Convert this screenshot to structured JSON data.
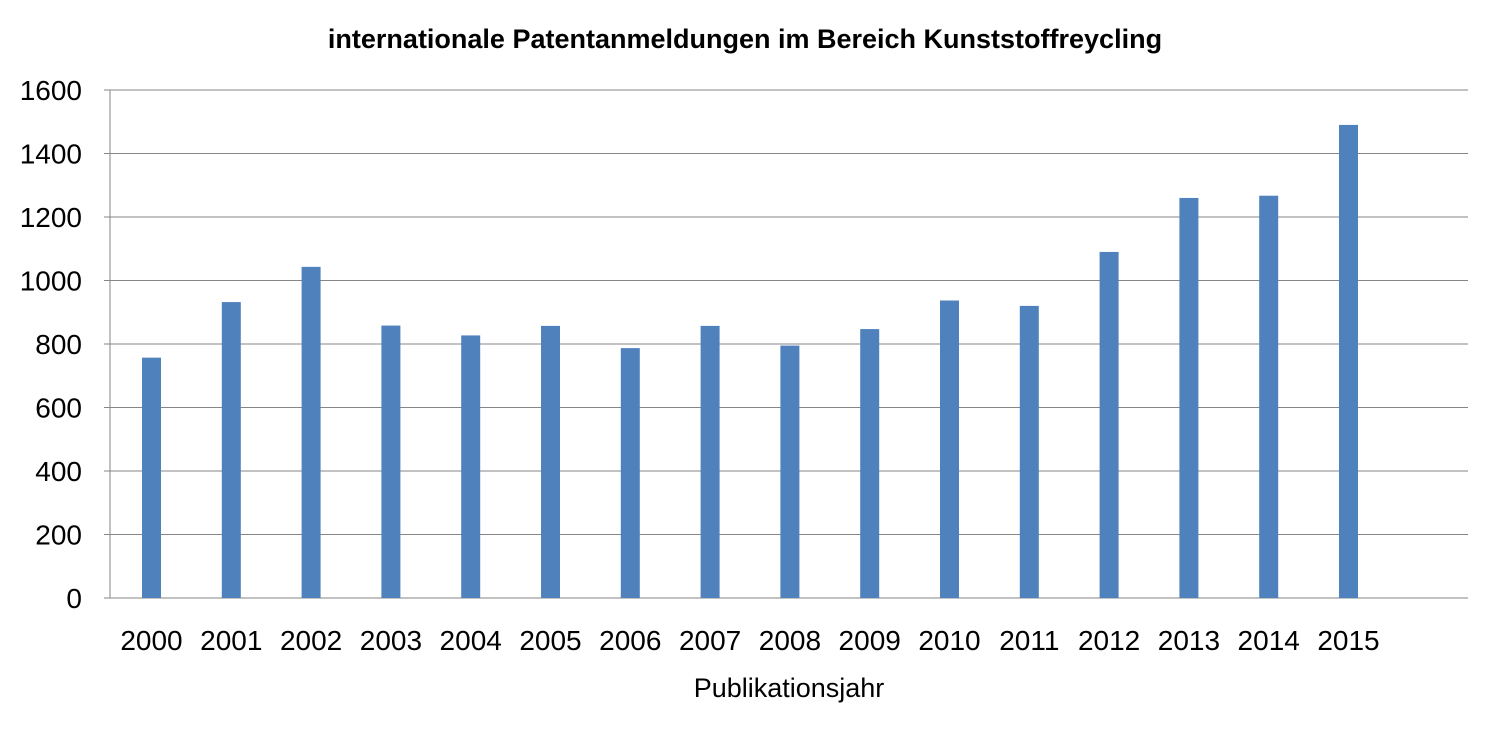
{
  "chart_data": {
    "type": "bar",
    "title": "internationale Patentanmeldungen im Bereich Kunststoffreycling",
    "xlabel": "Publikationsjahr",
    "ylabel": "",
    "categories": [
      "2000",
      "2001",
      "2002",
      "2003",
      "2004",
      "2005",
      "2006",
      "2007",
      "2008",
      "2009",
      "2010",
      "2011",
      "2012",
      "2013",
      "2014",
      "2015"
    ],
    "values": [
      757,
      932,
      1043,
      858,
      827,
      857,
      787,
      857,
      795,
      847,
      937,
      920,
      1090,
      1260,
      1267,
      1490
    ],
    "ylim": [
      0,
      1600
    ],
    "yticks": [
      "0",
      "200",
      "400",
      "600",
      "800",
      "1000",
      "1200",
      "1400",
      "1600"
    ],
    "grid": true,
    "legend": "none",
    "colors": {
      "bar": "#4F81BD",
      "grid": "#868686",
      "axis": "#868686"
    }
  }
}
